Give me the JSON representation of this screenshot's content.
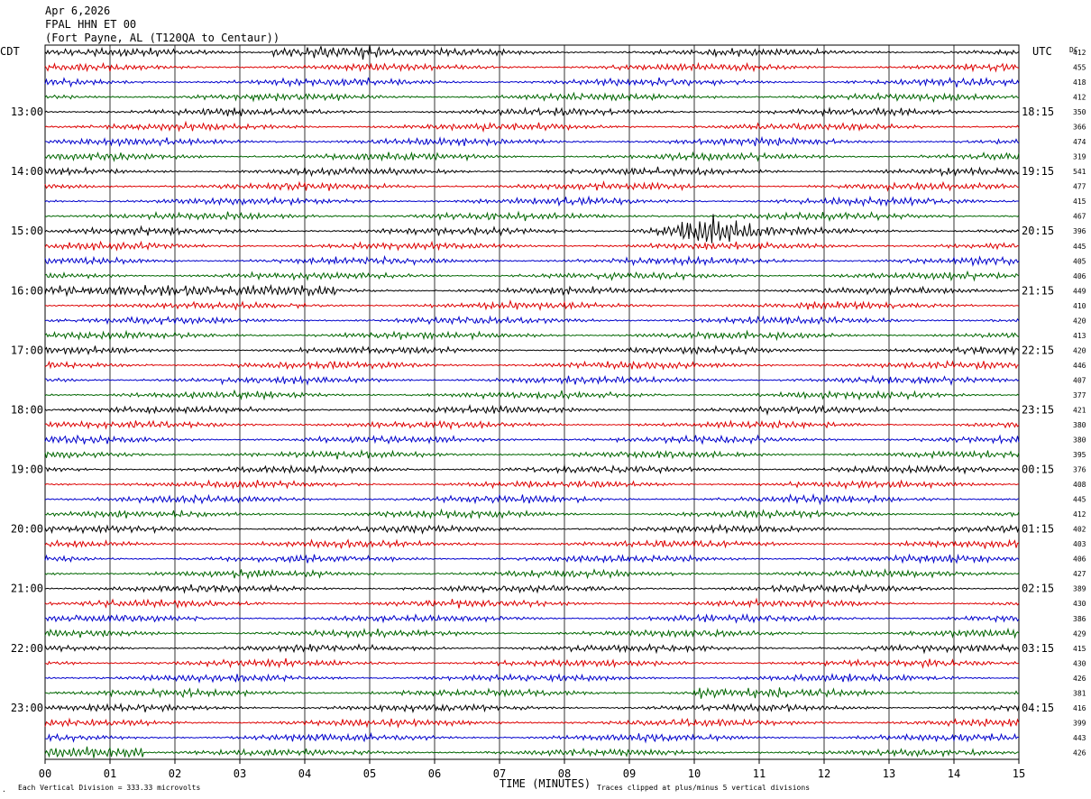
{
  "header": {
    "line1": "Apr 6,2026",
    "line2": "FPAL HHN ET 00",
    "line3": "(Fort Payne, AL (T120QA to Centaur))"
  },
  "left_axis_label": "CDT",
  "right_axis_label": "UTC",
  "dc_label": "DC",
  "footer": {
    "scale_note": "Each Vertical Division =  333.33 microvolts",
    "clip_note": "Traces clipped at plus/minus 5 vertical divisions",
    "corner_mark": "."
  },
  "colors": {
    "trace_cycle": [
      "#000000",
      "#dd0000",
      "#0000cc",
      "#006600"
    ],
    "grid": "#000000",
    "background": "#ffffff"
  },
  "chart_data": {
    "type": "line",
    "subtype": "helicorder seismogram",
    "title": "FPAL HHN ET 00",
    "xlabel": "TIME (MINUTES)",
    "ylabel": "",
    "xlim": [
      0,
      15
    ],
    "x_ticks": [
      "00",
      "01",
      "02",
      "03",
      "04",
      "05",
      "06",
      "07",
      "08",
      "09",
      "10",
      "11",
      "12",
      "13",
      "14",
      "15"
    ],
    "grid": true,
    "line_minutes": 15,
    "num_lines": 48,
    "left_time_labels": [
      {
        "line": 4,
        "text": "13:00"
      },
      {
        "line": 8,
        "text": "14:00"
      },
      {
        "line": 12,
        "text": "15:00"
      },
      {
        "line": 16,
        "text": "16:00"
      },
      {
        "line": 20,
        "text": "17:00"
      },
      {
        "line": 24,
        "text": "18:00"
      },
      {
        "line": 28,
        "text": "19:00"
      },
      {
        "line": 32,
        "text": "20:00"
      },
      {
        "line": 36,
        "text": "21:00"
      },
      {
        "line": 40,
        "text": "22:00"
      },
      {
        "line": 44,
        "text": "23:00"
      }
    ],
    "right_time_labels": [
      {
        "line": 4,
        "text": "18:15"
      },
      {
        "line": 8,
        "text": "19:15"
      },
      {
        "line": 12,
        "text": "20:15"
      },
      {
        "line": 16,
        "text": "21:15"
      },
      {
        "line": 20,
        "text": "22:15"
      },
      {
        "line": 24,
        "text": "23:15"
      },
      {
        "line": 28,
        "text": "00:15"
      },
      {
        "line": 32,
        "text": "01:15"
      },
      {
        "line": 36,
        "text": "02:15"
      },
      {
        "line": 40,
        "text": "03:15"
      },
      {
        "line": 44,
        "text": "04:15"
      }
    ],
    "dc_offsets": [
      "412",
      "455",
      "418",
      "412",
      "350",
      "366",
      "474",
      "319",
      "541",
      "477",
      "415",
      "467",
      "396",
      "445",
      "405",
      "406",
      "449",
      "410",
      "420",
      "413",
      "420",
      "446",
      "407",
      "377",
      "421",
      "380",
      "380",
      "395",
      "376",
      "408",
      "445",
      "412",
      "402",
      "403",
      "406",
      "427",
      "389",
      "430",
      "386",
      "429",
      "415",
      "430",
      "426",
      "381",
      "416",
      "399",
      "443",
      "426"
    ],
    "events": [
      {
        "line": 12,
        "start_min": 9.0,
        "peak_min": 10.4,
        "end_min": 12.2,
        "peak_amplitude_divisions": 1.2,
        "description_visible": "larger signal on 15:00 trace"
      }
    ],
    "noisy_segments": [
      {
        "line": 0,
        "start_min": 3.5,
        "end_min": 5.2,
        "amplitude_divisions": 0.45
      },
      {
        "line": 16,
        "start_min": 0.0,
        "end_min": 4.5,
        "amplitude_divisions": 0.4
      },
      {
        "line": 43,
        "start_min": 10.0,
        "end_min": 11.5,
        "amplitude_divisions": 0.4
      },
      {
        "line": 47,
        "start_min": 0.0,
        "end_min": 1.5,
        "amplitude_divisions": 0.4
      }
    ],
    "base_amplitude_divisions": 0.25
  }
}
